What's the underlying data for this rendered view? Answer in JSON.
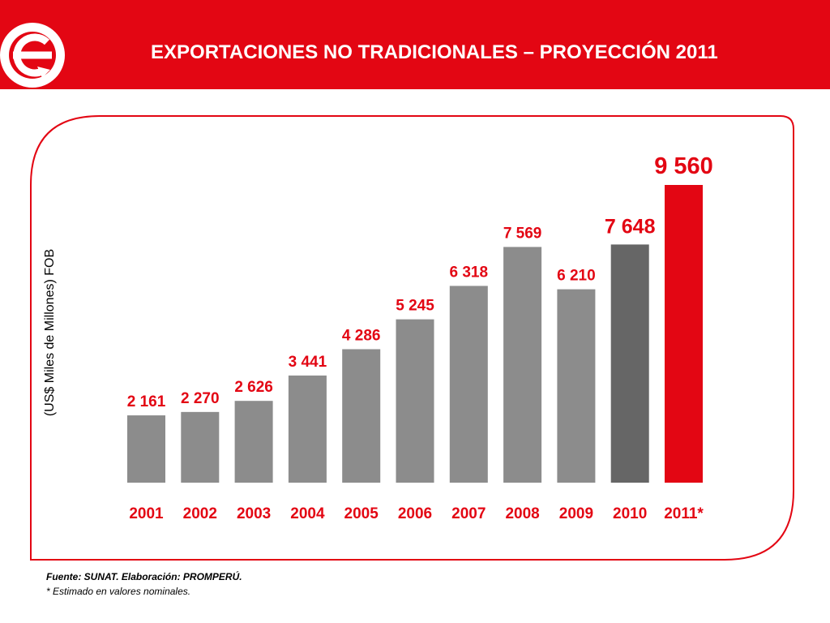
{
  "header": {
    "title": "EXPORTACIONES NO TRADICIONALES – PROYECCIÓN 2011",
    "brand_color": "#e30613"
  },
  "chart_data": {
    "type": "bar",
    "title": "EXPORTACIONES NO TRADICIONALES – PROYECCIÓN 2011",
    "ylabel": "(US$ Miles de Millones) FOB",
    "xlabel": "",
    "categories": [
      "2001",
      "2002",
      "2003",
      "2004",
      "2005",
      "2006",
      "2007",
      "2008",
      "2009",
      "2010",
      "2011*"
    ],
    "values": [
      2161,
      2270,
      2626,
      3441,
      4286,
      5245,
      6318,
      7569,
      6210,
      7648,
      9560
    ],
    "value_labels": [
      "2 161",
      "2 270",
      "2 626",
      "3 441",
      "4 286",
      "5 245",
      "6 318",
      "7 569",
      "6 210",
      "7 648",
      "9 560"
    ],
    "ylim": [
      0,
      9560
    ],
    "bar_colors": [
      "#8c8c8c",
      "#8c8c8c",
      "#8c8c8c",
      "#8c8c8c",
      "#8c8c8c",
      "#8c8c8c",
      "#8c8c8c",
      "#8c8c8c",
      "#8c8c8c",
      "#666666",
      "#e30613"
    ],
    "label_color": "#e30613",
    "grid": false,
    "legend": "none"
  },
  "footer": {
    "source": "Fuente: SUNAT. Elaboración: PROMPERÚ.",
    "note": "* Estimado en valores nominales."
  }
}
